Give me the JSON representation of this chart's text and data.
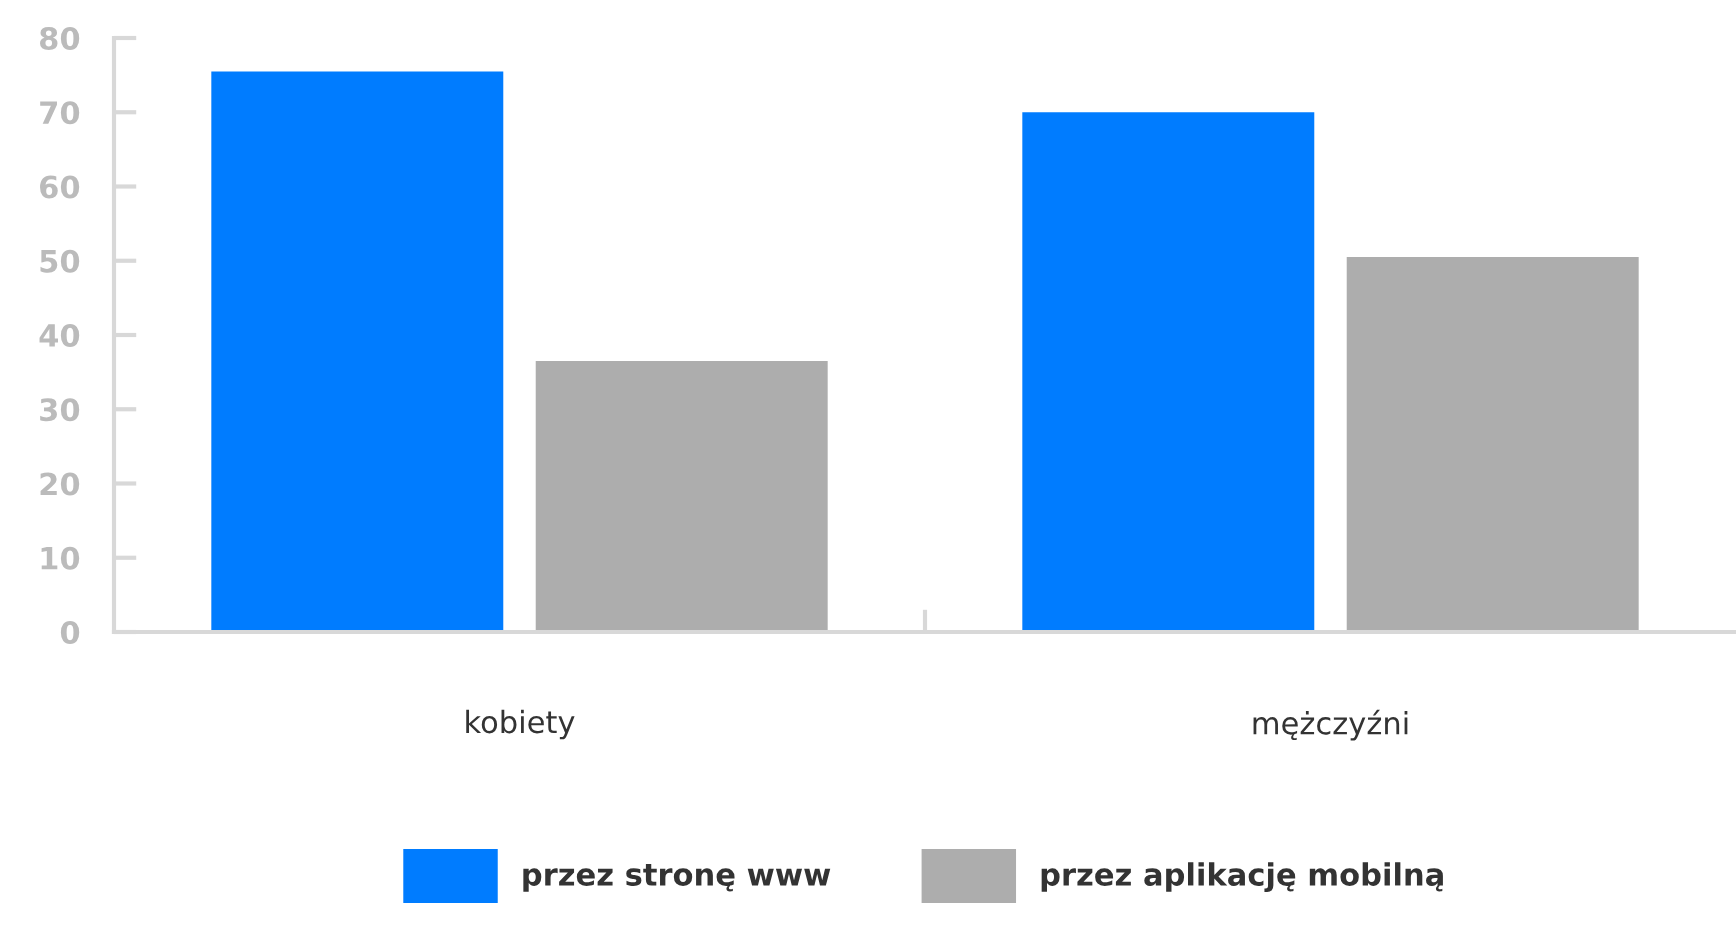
{
  "chart_data": {
    "type": "bar",
    "categories": [
      "kobiety",
      "mężczyźni"
    ],
    "series": [
      {
        "name": "przez stronę www",
        "color": "#007cff",
        "values": [
          75.5,
          70
        ]
      },
      {
        "name": "przez aplikację mobilną",
        "color": "#adadad",
        "values": [
          36.5,
          50.5
        ]
      }
    ],
    "ylim": [
      0,
      80
    ],
    "yticks": [
      0,
      10,
      20,
      30,
      40,
      50,
      60,
      70,
      80
    ],
    "grid": false,
    "legend": "bottom"
  }
}
